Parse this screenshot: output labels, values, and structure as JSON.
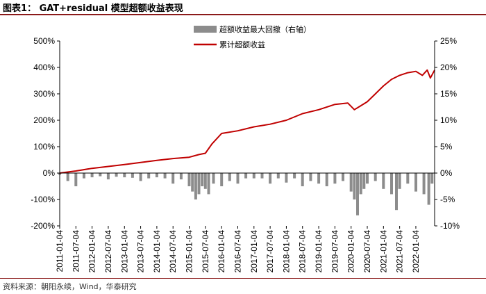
{
  "title": "图表1：  GAT+residual 模型超额收益表现",
  "source": "资料来源：朝阳永续，Wind，华泰研究",
  "colors": {
    "line": "#c00000",
    "bars": "#8c8c8c",
    "title_rule": "#8b1a1a"
  },
  "chart_data": {
    "type": "line+bar",
    "left_axis": {
      "min": -200,
      "max": 500,
      "ticks": [
        500,
        400,
        300,
        200,
        100,
        0,
        -100,
        -200
      ],
      "tick_labels": [
        "500%",
        "400%",
        "300%",
        "200%",
        "100%",
        "0%",
        "-100%",
        "-200%"
      ]
    },
    "right_axis": {
      "min": -10,
      "max": 25,
      "ticks": [
        25,
        20,
        15,
        10,
        5,
        0,
        -5,
        -10
      ],
      "tick_labels": [
        "25%",
        "20%",
        "15%",
        "10%",
        "5%",
        "0%",
        "-5%",
        "-10%"
      ]
    },
    "x_tick_labels": [
      "2011-01-04",
      "2011-07-04",
      "2012-01-04",
      "2012-07-04",
      "2013-01-04",
      "2013-07-04",
      "2014-01-04",
      "2014-07-04",
      "2015-01-04",
      "2015-07-04",
      "2016-01-04",
      "2016-07-04",
      "2017-01-04",
      "2017-07-04",
      "2018-01-04",
      "2018-07-04",
      "2019-01-04",
      "2019-07-04",
      "2020-01-04",
      "2020-07-04",
      "2021-01-04",
      "2021-07-04",
      "2022-01-04"
    ],
    "x_range": [
      2011.0,
      2022.58
    ],
    "series": [
      {
        "name": "超额收益最大回撤（右轴）",
        "type": "bar",
        "axis": "right",
        "x": [
          2011.0,
          2011.25,
          2011.5,
          2011.75,
          2012.0,
          2012.25,
          2012.5,
          2012.75,
          2013.0,
          2013.25,
          2013.5,
          2013.75,
          2014.0,
          2014.25,
          2014.5,
          2014.75,
          2015.0,
          2015.1,
          2015.2,
          2015.3,
          2015.4,
          2015.5,
          2015.6,
          2015.75,
          2016.0,
          2016.25,
          2016.5,
          2016.75,
          2017.0,
          2017.25,
          2017.5,
          2017.75,
          2018.0,
          2018.25,
          2018.5,
          2018.75,
          2019.0,
          2019.25,
          2019.5,
          2019.75,
          2020.0,
          2020.1,
          2020.2,
          2020.3,
          2020.4,
          2020.5,
          2020.75,
          2021.0,
          2021.25,
          2021.4,
          2021.5,
          2021.75,
          2022.0,
          2022.25,
          2022.4,
          2022.5
        ],
        "values": [
          -0.3,
          -1.5,
          -2.5,
          -1.0,
          -0.8,
          -0.6,
          -1.2,
          -0.7,
          -0.8,
          -0.9,
          -1.5,
          -1.0,
          -0.8,
          -1.0,
          -2.0,
          -1.2,
          -2.5,
          -3.5,
          -5.0,
          -4.0,
          -2.5,
          -3.0,
          -4.0,
          -2.0,
          -2.5,
          -1.5,
          -2.0,
          -1.0,
          -1.0,
          -1.0,
          -2.0,
          -1.0,
          -1.8,
          -1.0,
          -2.5,
          -1.5,
          -2.0,
          -2.5,
          -2.0,
          -1.5,
          -3.5,
          -5.0,
          -8.0,
          -4.0,
          -3.0,
          -2.0,
          -1.5,
          -3.0,
          -4.0,
          -7.0,
          -3.0,
          -2.0,
          -3.5,
          -4.0,
          -6.0,
          -2.0
        ]
      },
      {
        "name": "累计超额收益",
        "type": "line",
        "axis": "left",
        "x": [
          2011.0,
          2011.5,
          2012.0,
          2012.5,
          2013.0,
          2013.5,
          2014.0,
          2014.5,
          2015.0,
          2015.3,
          2015.5,
          2015.7,
          2016.0,
          2016.5,
          2017.0,
          2017.5,
          2018.0,
          2018.5,
          2019.0,
          2019.5,
          2019.9,
          2020.1,
          2020.3,
          2020.5,
          2020.75,
          2021.0,
          2021.25,
          2021.5,
          2021.75,
          2022.0,
          2022.2,
          2022.35,
          2022.45,
          2022.58
        ],
        "values": [
          0,
          8,
          18,
          25,
          32,
          40,
          48,
          55,
          60,
          70,
          75,
          110,
          150,
          160,
          175,
          185,
          200,
          225,
          240,
          260,
          265,
          240,
          255,
          270,
          300,
          330,
          355,
          370,
          380,
          385,
          370,
          390,
          360,
          390
        ]
      }
    ]
  }
}
